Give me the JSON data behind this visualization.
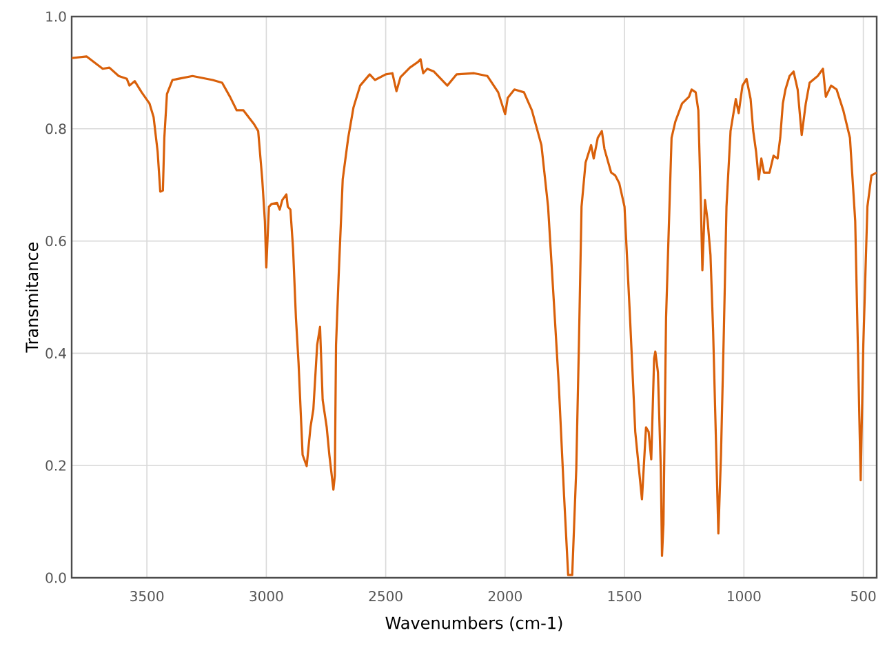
{
  "chart_data": {
    "type": "line",
    "xlabel": "Wavenumbers (cm-1)",
    "ylabel": "Transmitance",
    "x": [
      3815,
      3753,
      3685,
      3657,
      3618,
      3584,
      3573,
      3551,
      3522,
      3489,
      3472,
      3455,
      3444,
      3433,
      3427,
      3416,
      3393,
      3309,
      3225,
      3185,
      3152,
      3124,
      3096,
      3051,
      3034,
      3017,
      3006,
      3000,
      2989,
      2978,
      2955,
      2944,
      2933,
      2916,
      2910,
      2899,
      2888,
      2876,
      2865,
      2848,
      2831,
      2815,
      2803,
      2787,
      2775,
      2764,
      2747,
      2736,
      2719,
      2713,
      2708,
      2697,
      2680,
      2657,
      2635,
      2607,
      2567,
      2545,
      2500,
      2472,
      2455,
      2438,
      2399,
      2365,
      2354,
      2343,
      2326,
      2298,
      2242,
      2203,
      2130,
      2074,
      2029,
      2000,
      1989,
      1961,
      1921,
      1888,
      1848,
      1820,
      1792,
      1775,
      1753,
      1736,
      1719,
      1702,
      1691,
      1680,
      1663,
      1640,
      1629,
      1612,
      1595,
      1584,
      1556,
      1539,
      1522,
      1500,
      1477,
      1455,
      1427,
      1410,
      1399,
      1388,
      1376,
      1371,
      1360,
      1348,
      1343,
      1337,
      1326,
      1303,
      1287,
      1259,
      1230,
      1219,
      1202,
      1191,
      1180,
      1174,
      1163,
      1152,
      1140,
      1129,
      1107,
      1096,
      1084,
      1073,
      1056,
      1034,
      1022,
      1006,
      989,
      972,
      961,
      949,
      938,
      927,
      916,
      893,
      876,
      859,
      848,
      837,
      826,
      809,
      792,
      775,
      758,
      741,
      725,
      691,
      669,
      657,
      635,
      612,
      584,
      556,
      534,
      523,
      511,
      500,
      483,
      466,
      444
    ],
    "series": [
      {
        "color": "#d9600a",
        "values": [
          0.926,
          0.929,
          0.907,
          0.909,
          0.894,
          0.889,
          0.877,
          0.885,
          0.865,
          0.845,
          0.821,
          0.759,
          0.688,
          0.69,
          0.784,
          0.862,
          0.887,
          0.894,
          0.887,
          0.882,
          0.857,
          0.833,
          0.833,
          0.808,
          0.796,
          0.71,
          0.636,
          0.553,
          0.661,
          0.666,
          0.668,
          0.656,
          0.673,
          0.683,
          0.661,
          0.656,
          0.587,
          0.464,
          0.383,
          0.219,
          0.199,
          0.268,
          0.3,
          0.415,
          0.447,
          0.317,
          0.268,
          0.219,
          0.157,
          0.182,
          0.415,
          0.538,
          0.71,
          0.784,
          0.838,
          0.877,
          0.897,
          0.887,
          0.897,
          0.899,
          0.867,
          0.892,
          0.909,
          0.919,
          0.924,
          0.899,
          0.907,
          0.902,
          0.877,
          0.897,
          0.899,
          0.894,
          0.865,
          0.826,
          0.855,
          0.87,
          0.865,
          0.833,
          0.771,
          0.661,
          0.464,
          0.342,
          0.145,
          0.005,
          0.005,
          0.194,
          0.415,
          0.661,
          0.74,
          0.771,
          0.747,
          0.784,
          0.796,
          0.764,
          0.722,
          0.717,
          0.703,
          0.661,
          0.464,
          0.26,
          0.14,
          0.268,
          0.26,
          0.211,
          0.391,
          0.403,
          0.366,
          0.194,
          0.039,
          0.096,
          0.464,
          0.784,
          0.813,
          0.845,
          0.857,
          0.87,
          0.865,
          0.833,
          0.661,
          0.548,
          0.673,
          0.636,
          0.575,
          0.44,
          0.079,
          0.219,
          0.44,
          0.661,
          0.796,
          0.853,
          0.828,
          0.877,
          0.889,
          0.853,
          0.796,
          0.759,
          0.71,
          0.747,
          0.722,
          0.722,
          0.752,
          0.747,
          0.784,
          0.845,
          0.87,
          0.894,
          0.902,
          0.87,
          0.789,
          0.845,
          0.882,
          0.894,
          0.907,
          0.857,
          0.877,
          0.87,
          0.833,
          0.784,
          0.636,
          0.415,
          0.174,
          0.415,
          0.661,
          0.717,
          0.722
        ]
      }
    ],
    "xlim": [
      3815,
      444
    ],
    "ylim": [
      0,
      1
    ],
    "xticks": [
      3500,
      3000,
      2500,
      2000,
      1500,
      1000,
      500
    ],
    "yticks": [
      {
        "value": 0,
        "label": "0.0"
      },
      {
        "value": 0.2,
        "label": "0.2"
      },
      {
        "value": 0.4,
        "label": "0.4"
      },
      {
        "value": 0.6,
        "label": "0.6"
      },
      {
        "value": 0.8,
        "label": "0.8"
      },
      {
        "value": 1,
        "label": "1.0"
      }
    ],
    "grid": true,
    "marker": "none",
    "line_style": "solid"
  }
}
